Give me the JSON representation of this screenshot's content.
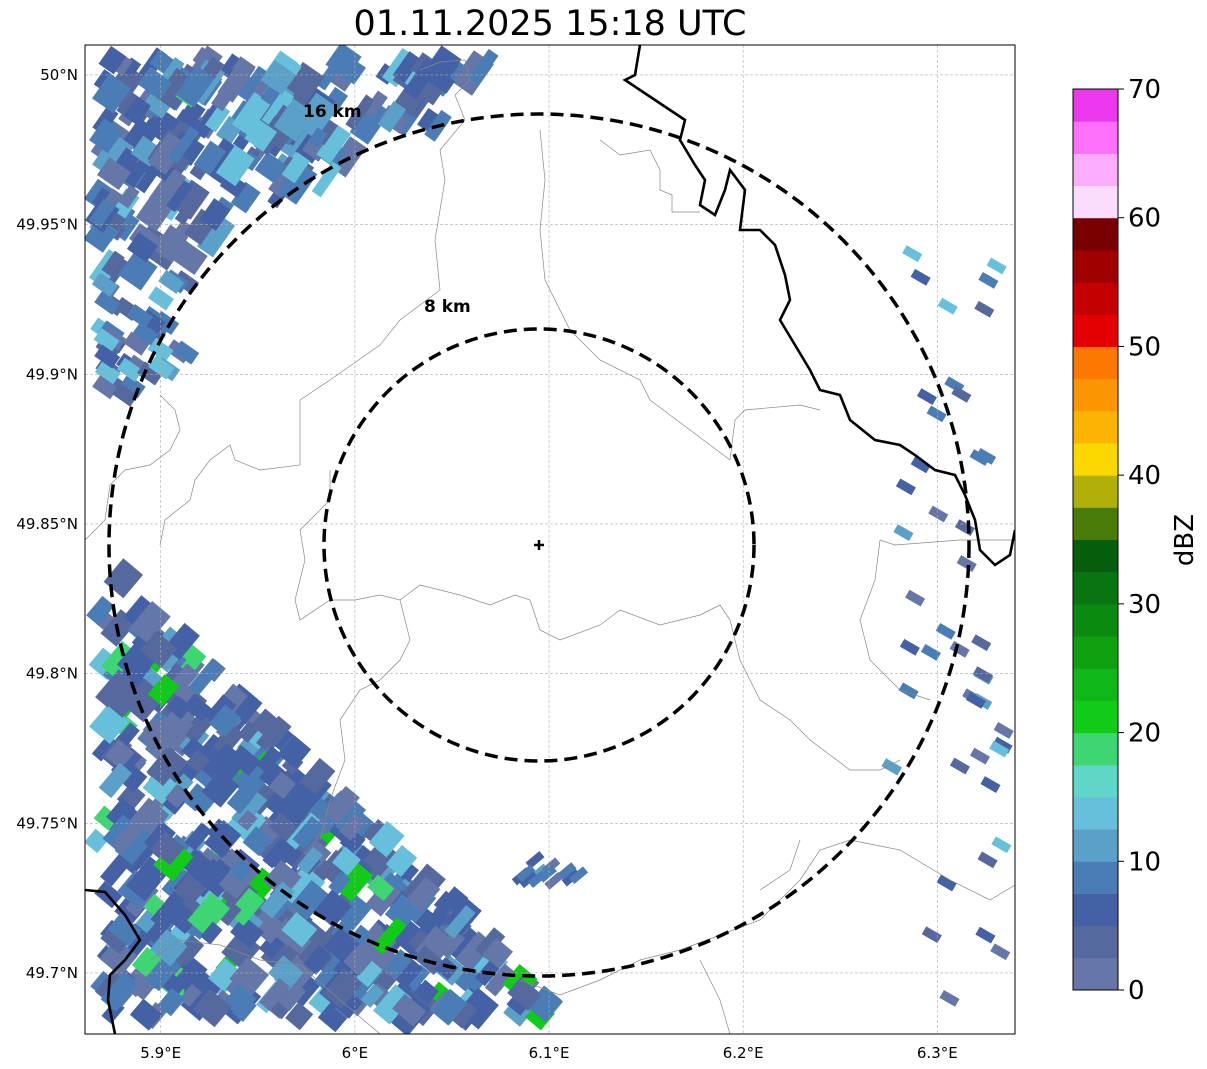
{
  "title": "01.11.2025 15:18 UTC",
  "map": {
    "lon_range": [
      5.861,
      6.34
    ],
    "lat_range": [
      49.6796,
      50.01
    ],
    "radar_site": {
      "lon": 6.0948,
      "lat": 49.8433
    },
    "lon_ticks": [
      {
        "v": 5.9,
        "label": "5.9°E"
      },
      {
        "v": 6.0,
        "label": "6°E"
      },
      {
        "v": 6.1,
        "label": "6.1°E"
      },
      {
        "v": 6.2,
        "label": "6.2°E"
      },
      {
        "v": 6.3,
        "label": "6.3°E"
      }
    ],
    "lat_ticks": [
      {
        "v": 50.0,
        "label": "50°N"
      },
      {
        "v": 49.95,
        "label": "49.95°N"
      },
      {
        "v": 49.9,
        "label": "49.9°N"
      },
      {
        "v": 49.85,
        "label": "49.85°N"
      },
      {
        "v": 49.8,
        "label": "49.8°N"
      },
      {
        "v": 49.75,
        "label": "49.75°N"
      },
      {
        "v": 49.7,
        "label": "49.7°N"
      }
    ],
    "range_rings": [
      {
        "km": 8,
        "label": "8 km"
      },
      {
        "km": 16,
        "label": "16 km"
      }
    ]
  },
  "colorbar": {
    "label": "dBZ",
    "min": 0,
    "max": 70,
    "step": 2.5,
    "ticks": [
      "0",
      "10",
      "20",
      "30",
      "40",
      "50",
      "60",
      "70"
    ],
    "colors": [
      "#6577a8",
      "#56699f",
      "#4561a6",
      "#4a7db6",
      "#5aa0c8",
      "#66c0dc",
      "#60d6c8",
      "#3ed672",
      "#10cc18",
      "#0fb818",
      "#0fa010",
      "#0b8a10",
      "#0a7410",
      "#065e0c",
      "#4a7a08",
      "#b0b008",
      "#fcd800",
      "#fcb400",
      "#fc9600",
      "#fc7800",
      "#e40000",
      "#c40000",
      "#a00000",
      "#780000",
      "#fcdcfc",
      "#fcacfc",
      "#fc70fc",
      "#ec38ec"
    ]
  }
}
